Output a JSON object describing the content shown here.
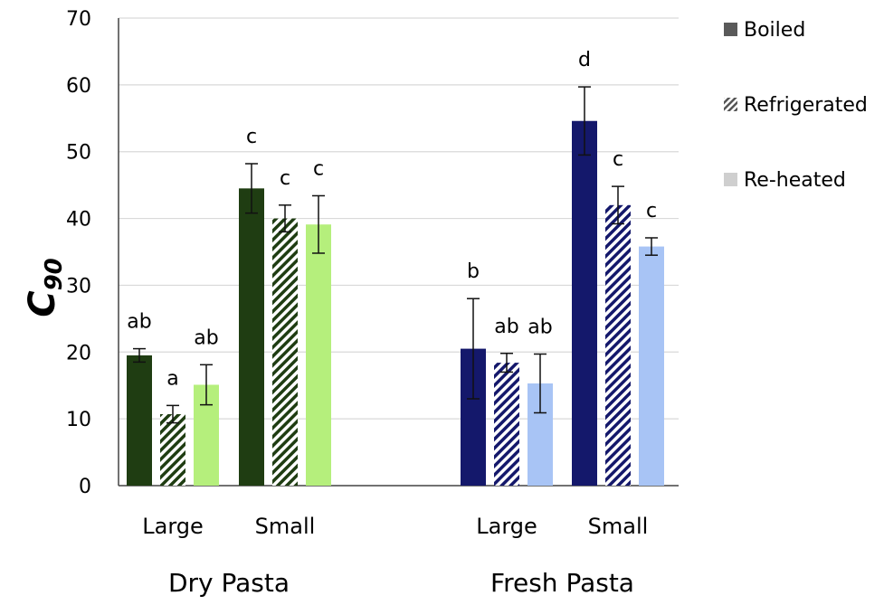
{
  "chart_data": {
    "type": "bar",
    "ylabel_main": "C",
    "ylabel_sub": "90",
    "ylim": [
      0,
      70
    ],
    "yticks": [
      0,
      10,
      20,
      30,
      40,
      50,
      60,
      70
    ],
    "grid": true,
    "legend_position": "right",
    "groups": [
      {
        "label": "Dry Pasta",
        "palette": [
          "#1f3d12",
          "#1f3d12",
          "#b5ef7c"
        ],
        "categories": [
          {
            "label": "Large",
            "bars": [
              {
                "series": "Boiled",
                "value": 19.5,
                "err": 1.0,
                "sig": "ab"
              },
              {
                "series": "Refrigerated",
                "value": 10.7,
                "err": 1.3,
                "sig": "a"
              },
              {
                "series": "Re-heated",
                "value": 15.1,
                "err": 3.0,
                "sig": "ab"
              }
            ]
          },
          {
            "label": "Small",
            "bars": [
              {
                "series": "Boiled",
                "value": 44.5,
                "err": 3.7,
                "sig": "c"
              },
              {
                "series": "Refrigerated",
                "value": 40.0,
                "err": 2.0,
                "sig": "c"
              },
              {
                "series": "Re-heated",
                "value": 39.1,
                "err": 4.3,
                "sig": "c"
              }
            ]
          }
        ]
      },
      {
        "label": "Fresh Pasta",
        "palette": [
          "#14186b",
          "#14186b",
          "#a8c4f5"
        ],
        "categories": [
          {
            "label": "Large",
            "bars": [
              {
                "series": "Boiled",
                "value": 20.5,
                "err": 7.5,
                "sig": "b"
              },
              {
                "series": "Refrigerated",
                "value": 18.4,
                "err": 1.4,
                "sig": "ab"
              },
              {
                "series": "Re-heated",
                "value": 15.3,
                "err": 4.4,
                "sig": "ab"
              }
            ]
          },
          {
            "label": "Small",
            "bars": [
              {
                "series": "Boiled",
                "value": 54.6,
                "err": 5.1,
                "sig": "d"
              },
              {
                "series": "Refrigerated",
                "value": 42.0,
                "err": 2.8,
                "sig": "c"
              },
              {
                "series": "Re-heated",
                "value": 35.8,
                "err": 1.3,
                "sig": "c"
              }
            ]
          }
        ]
      }
    ],
    "legend": [
      {
        "label": "Boiled",
        "pattern": "solid"
      },
      {
        "label": "Refrigerated",
        "pattern": "hatched"
      },
      {
        "label": "Re-heated",
        "pattern": "light"
      }
    ]
  }
}
